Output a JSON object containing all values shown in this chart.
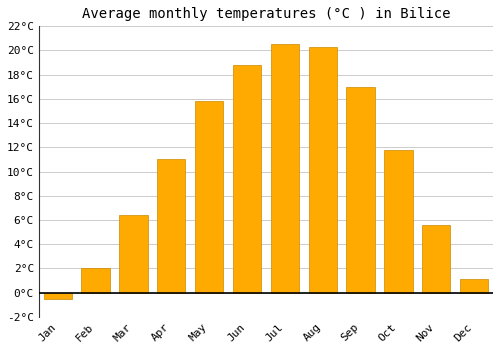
{
  "title": "Average monthly temperatures (°C ) in Bilice",
  "months": [
    "Jan",
    "Feb",
    "Mar",
    "Apr",
    "May",
    "Jun",
    "Jul",
    "Aug",
    "Sep",
    "Oct",
    "Nov",
    "Dec"
  ],
  "values": [
    -0.5,
    2.0,
    6.4,
    11.0,
    15.8,
    18.8,
    20.5,
    20.3,
    17.0,
    11.8,
    5.6,
    1.1
  ],
  "bar_color": "#FFAA00",
  "bar_edge_color": "#CC8800",
  "background_color": "#FFFFFF",
  "plot_bg_color": "#FFFFFF",
  "grid_color": "#CCCCCC",
  "ylim": [
    -2,
    22
  ],
  "yticks": [
    -2,
    0,
    2,
    4,
    6,
    8,
    10,
    12,
    14,
    16,
    18,
    20,
    22
  ],
  "title_fontsize": 10,
  "tick_fontsize": 8,
  "bar_width": 0.75,
  "left_spine_color": "#333333"
}
